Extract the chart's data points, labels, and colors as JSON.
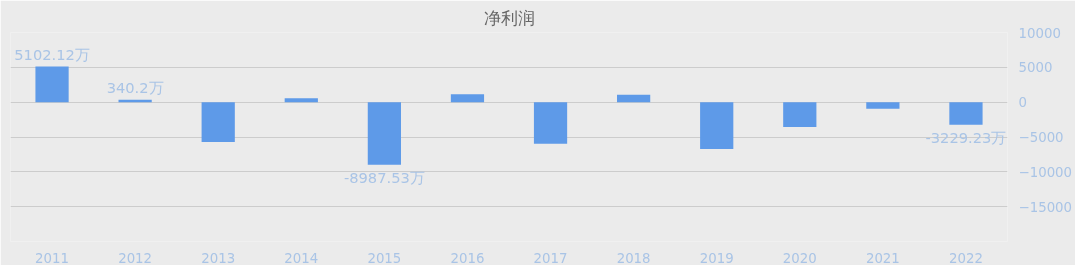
{
  "chart_data": {
    "type": "bar",
    "title": "净利润",
    "categories": [
      "2011",
      "2012",
      "2013",
      "2014",
      "2015",
      "2016",
      "2017",
      "2018",
      "2019",
      "2020",
      "2021",
      "2022"
    ],
    "values": [
      5102.12,
      340.2,
      -5700,
      570,
      -8987.53,
      1130,
      -5960,
      1080,
      -6730,
      -3550,
      -930,
      -3229.23
    ],
    "value_labels": [
      "5102.12万",
      "340.2万",
      null,
      null,
      "-8987.53万",
      null,
      null,
      null,
      null,
      null,
      null,
      "-3229.23万"
    ],
    "color": "#5e9ae8",
    "ylim": [
      -20000,
      10000
    ],
    "yticks": [
      {
        "value": -20000,
        "label": null
      },
      -15000,
      -10000,
      -5000,
      0,
      5000,
      10000
    ],
    "grid": "y"
  }
}
